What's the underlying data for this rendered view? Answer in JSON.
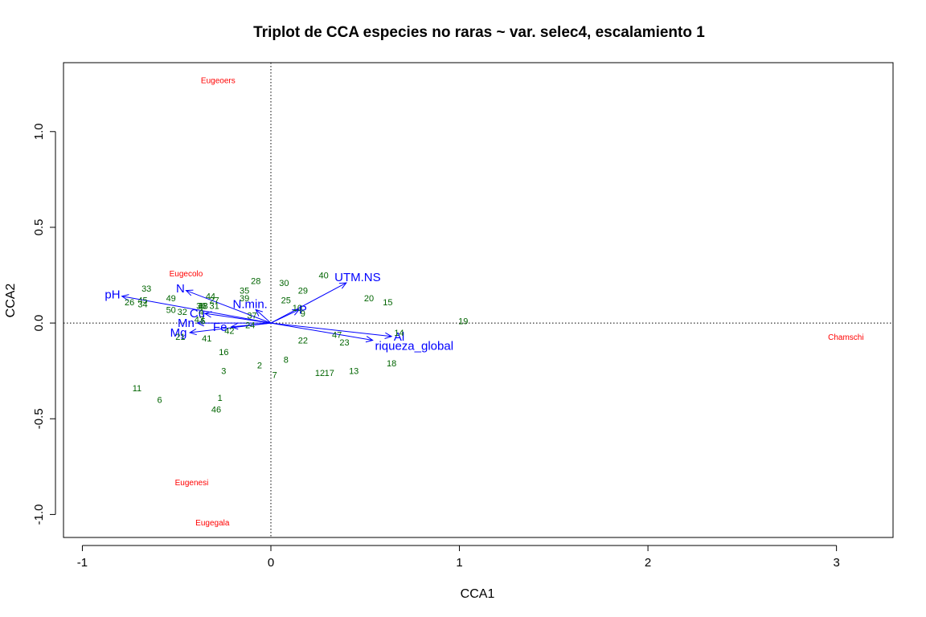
{
  "chart_data": {
    "type": "scatter",
    "title": "Triplot de CCA especies no raras ~ var. selec4, escalamiento 1",
    "xlabel": "CCA1",
    "ylabel": "CCA2",
    "xlim": [
      -1.1,
      3.3
    ],
    "ylim": [
      -1.12,
      1.36
    ],
    "x_ticks": [
      "-1",
      "0",
      "1",
      "2",
      "3"
    ],
    "y_ticks": [
      "-1.0",
      "-0.5",
      "0.0",
      "0.5",
      "1.0"
    ],
    "x_tick_values": [
      -1,
      0,
      1,
      2,
      3
    ],
    "y_tick_values": [
      -1.0,
      -0.5,
      0.0,
      0.5,
      1.0
    ],
    "reference_lines": {
      "x": 0,
      "y": 0,
      "style": "dotted"
    },
    "colors": {
      "sites": "#006400",
      "species": "#ff0000",
      "env": "#0000ff"
    },
    "sites": [
      {
        "label": "1",
        "x": -0.27,
        "y": -0.39
      },
      {
        "label": "2",
        "x": -0.06,
        "y": -0.22
      },
      {
        "label": "3",
        "x": -0.25,
        "y": -0.25
      },
      {
        "label": "4",
        "x": -0.37,
        "y": 0.06
      },
      {
        "label": "5",
        "x": -0.36,
        "y": 0.01
      },
      {
        "label": "6",
        "x": -0.59,
        "y": -0.4
      },
      {
        "label": "7",
        "x": 0.02,
        "y": -0.27
      },
      {
        "label": "8",
        "x": 0.08,
        "y": -0.19
      },
      {
        "label": "9",
        "x": 0.17,
        "y": 0.05
      },
      {
        "label": "10",
        "x": 0.14,
        "y": 0.08
      },
      {
        "label": "11",
        "x": -0.71,
        "y": -0.34
      },
      {
        "label": "12",
        "x": 0.26,
        "y": -0.26
      },
      {
        "label": "13",
        "x": 0.44,
        "y": -0.25
      },
      {
        "label": "14",
        "x": 0.68,
        "y": -0.05
      },
      {
        "label": "15",
        "x": 0.62,
        "y": 0.11
      },
      {
        "label": "16",
        "x": -0.25,
        "y": -0.15
      },
      {
        "label": "17",
        "x": 0.31,
        "y": -0.26
      },
      {
        "label": "18",
        "x": 0.64,
        "y": -0.21
      },
      {
        "label": "19",
        "x": 1.02,
        "y": 0.01
      },
      {
        "label": "20",
        "x": 0.52,
        "y": 0.13
      },
      {
        "label": "21",
        "x": -0.48,
        "y": -0.07
      },
      {
        "label": "22",
        "x": 0.17,
        "y": -0.09
      },
      {
        "label": "23",
        "x": 0.39,
        "y": -0.1
      },
      {
        "label": "24",
        "x": -0.11,
        "y": -0.01
      },
      {
        "label": "25",
        "x": 0.08,
        "y": 0.12
      },
      {
        "label": "26",
        "x": -0.75,
        "y": 0.11
      },
      {
        "label": "27",
        "x": -0.3,
        "y": 0.12
      },
      {
        "label": "28",
        "x": -0.08,
        "y": 0.22
      },
      {
        "label": "29",
        "x": 0.17,
        "y": 0.17
      },
      {
        "label": "30",
        "x": 0.07,
        "y": 0.21
      },
      {
        "label": "31",
        "x": -0.3,
        "y": 0.09
      },
      {
        "label": "32",
        "x": -0.47,
        "y": 0.06
      },
      {
        "label": "33",
        "x": -0.66,
        "y": 0.18
      },
      {
        "label": "34",
        "x": -0.68,
        "y": 0.1
      },
      {
        "label": "35",
        "x": -0.14,
        "y": 0.17
      },
      {
        "label": "36",
        "x": -0.37,
        "y": 0.09
      },
      {
        "label": "37",
        "x": -0.1,
        "y": 0.04
      },
      {
        "label": "38",
        "x": -0.36,
        "y": 0.09
      },
      {
        "label": "39",
        "x": -0.14,
        "y": 0.13
      },
      {
        "label": "40",
        "x": 0.28,
        "y": 0.25
      },
      {
        "label": "41",
        "x": -0.34,
        "y": -0.08
      },
      {
        "label": "42",
        "x": -0.22,
        "y": -0.04
      },
      {
        "label": "43",
        "x": -0.38,
        "y": 0.02
      },
      {
        "label": "44",
        "x": -0.32,
        "y": 0.14
      },
      {
        "label": "45",
        "x": -0.68,
        "y": 0.12
      },
      {
        "label": "46",
        "x": -0.29,
        "y": -0.45
      },
      {
        "label": "47",
        "x": 0.35,
        "y": -0.06
      },
      {
        "label": "48",
        "x": -0.36,
        "y": 0.09
      },
      {
        "label": "49",
        "x": -0.53,
        "y": 0.13
      },
      {
        "label": "50",
        "x": -0.53,
        "y": 0.07
      }
    ],
    "species": [
      {
        "label": "Eugeoers",
        "x": -0.28,
        "y": 1.27
      },
      {
        "label": "Eugecolo",
        "x": -0.45,
        "y": 0.26
      },
      {
        "label": "Chamschi",
        "x": 3.05,
        "y": -0.07
      },
      {
        "label": "Eugenesi",
        "x": -0.42,
        "y": -0.83
      },
      {
        "label": "Eugegala",
        "x": -0.31,
        "y": -1.04
      }
    ],
    "env_vectors": [
      {
        "label": "pH",
        "x": -0.79,
        "y": 0.14,
        "lx": -0.84,
        "ly": 0.15
      },
      {
        "label": "N",
        "x": -0.45,
        "y": 0.17,
        "lx": -0.48,
        "ly": 0.18
      },
      {
        "label": "N.min.",
        "x": -0.08,
        "y": 0.07,
        "lx": -0.11,
        "ly": 0.1
      },
      {
        "label": "Cu",
        "x": -0.35,
        "y": 0.05,
        "lx": -0.39,
        "ly": 0.05
      },
      {
        "label": "Mn",
        "x": -0.39,
        "y": 0.0,
        "lx": -0.45,
        "ly": 0.0
      },
      {
        "label": "Mg",
        "x": -0.43,
        "y": -0.05,
        "lx": -0.49,
        "ly": -0.05
      },
      {
        "label": "Fe",
        "x": -0.21,
        "y": -0.02,
        "lx": -0.27,
        "ly": -0.02
      },
      {
        "label": "P",
        "x": 0.15,
        "y": 0.07,
        "lx": 0.17,
        "ly": 0.07
      },
      {
        "label": "UTM.NS",
        "x": 0.4,
        "y": 0.21,
        "lx": 0.46,
        "ly": 0.24
      },
      {
        "label": "Al",
        "x": 0.64,
        "y": -0.07,
        "lx": 0.68,
        "ly": -0.07
      },
      {
        "label": "riqueza_global",
        "x": 0.54,
        "y": -0.09,
        "lx": 0.76,
        "ly": -0.12
      }
    ]
  }
}
